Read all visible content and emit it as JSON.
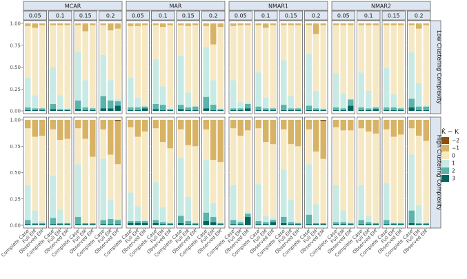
{
  "chart_data": {
    "type": "bar",
    "stacked": true,
    "y_scale": "proportion",
    "ylim": [
      0,
      1
    ],
    "yticks": [
      "0.00",
      "0.25",
      "0.50",
      "0.75",
      "1.00"
    ],
    "x_categories": [
      "Complete Case",
      "Full EM",
      "Observed EM"
    ],
    "mechanisms": [
      "MCAR",
      "MAR",
      "NMAR1",
      "NMAR2"
    ],
    "missing_rates": [
      "0.05",
      "0.1",
      "0.15",
      "0.2"
    ],
    "row_labels": [
      "Low Clustering Complexity",
      "High Clustering Complexity"
    ],
    "legend": {
      "title": "K̂ − K",
      "levels": [
        "−2",
        "−1",
        "0",
        "1",
        "2",
        "3"
      ],
      "colors": [
        "#8c510a",
        "#d8b365",
        "#f6e8c3",
        "#c7eae5",
        "#5ab4ac",
        "#01665e"
      ]
    },
    "stack_order_top_to_bottom": [
      "−2",
      "−1",
      "0",
      "1",
      "2",
      "3"
    ],
    "proportions_note": "Each bar lists proportions for levels [-2,-1,0,1,2,3]",
    "bars": {
      "Low Clustering Complexity": {
        "MCAR": {
          "0.05": [
            [
              0,
              0.03,
              0.59,
              0.34,
              0.03,
              0.01
            ],
            [
              0,
              0.05,
              0.77,
              0.15,
              0.02,
              0.01
            ],
            [
              0,
              0.02,
              0.94,
              0.01,
              0.02,
              0.01
            ]
          ],
          "0.1": [
            [
              0,
              0.02,
              0.48,
              0.42,
              0.06,
              0.02
            ],
            [
              0,
              0.02,
              0.8,
              0.16,
              0.01,
              0.01
            ],
            [
              0,
              0.02,
              0.95,
              0.01,
              0.01,
              0.01
            ]
          ],
          "0.15": [
            [
              0,
              0.02,
              0.3,
              0.56,
              0.1,
              0.02
            ],
            [
              0,
              0.09,
              0.56,
              0.31,
              0.03,
              0.01
            ],
            [
              0,
              0.02,
              0.94,
              0.01,
              0.02,
              0.01
            ]
          ],
          "0.2": [
            [
              0,
              0.02,
              0.34,
              0.47,
              0.14,
              0.03
            ],
            [
              0,
              0.08,
              0.57,
              0.23,
              0.09,
              0.03
            ],
            [
              0,
              0.06,
              0.8,
              0.03,
              0.05,
              0.06
            ]
          ]
        },
        "MAR": {
          "0.05": [
            [
              0,
              0.03,
              0.59,
              0.34,
              0.03,
              0.01
            ],
            [
              0,
              0.03,
              0.82,
              0.11,
              0.03,
              0.01
            ],
            [
              0,
              0.02,
              0.92,
              0.01,
              0.02,
              0.03
            ]
          ],
          "0.1": [
            [
              0,
              0.02,
              0.39,
              0.51,
              0.06,
              0.02
            ],
            [
              0,
              0.04,
              0.68,
              0.21,
              0.06,
              0.01
            ],
            [
              0,
              0.02,
              0.95,
              0.01,
              0.01,
              0.01
            ]
          ],
          "0.15": [
            [
              0,
              0.02,
              0.35,
              0.56,
              0.05,
              0.02
            ],
            [
              0,
              0.03,
              0.76,
              0.17,
              0.03,
              0.01
            ],
            [
              0,
              0.02,
              0.92,
              0.01,
              0.04,
              0.01
            ]
          ],
          "0.2": [
            [
              0,
              0.03,
              0.24,
              0.57,
              0.13,
              0.03
            ],
            [
              0,
              0.24,
              0.41,
              0.28,
              0.06,
              0.01
            ],
            [
              0,
              0.04,
              0.93,
              0.01,
              0.01,
              0.01
            ]
          ]
        },
        "NMAR1": {
          "0.05": [
            [
              0,
              0.03,
              0.62,
              0.32,
              0.02,
              0.01
            ],
            [
              0,
              0.02,
              0.88,
              0.07,
              0.02,
              0.01
            ],
            [
              0,
              0.02,
              0.88,
              0.02,
              0.05,
              0.03
            ]
          ],
          "0.1": [
            [
              0,
              0.02,
              0.54,
              0.39,
              0.04,
              0.01
            ],
            [
              0,
              0.05,
              0.8,
              0.12,
              0.02,
              0.01
            ],
            [
              0,
              0.02,
              0.94,
              0.01,
              0.02,
              0.01
            ]
          ],
          "0.15": [
            [
              0,
              0.02,
              0.4,
              0.51,
              0.06,
              0.01
            ],
            [
              0,
              0.02,
              0.81,
              0.14,
              0.02,
              0.01
            ],
            [
              0,
              0.02,
              0.94,
              0.01,
              0.02,
              0.01
            ]
          ],
          "0.2": [
            [
              0,
              0.02,
              0.33,
              0.59,
              0.05,
              0.01
            ],
            [
              0,
              0.12,
              0.65,
              0.2,
              0.02,
              0.01
            ],
            [
              0,
              0.02,
              0.95,
              0.01,
              0.01,
              0.01
            ]
          ]
        },
        "NMAR2": {
          "0.05": [
            [
              0,
              0.02,
              0.55,
              0.39,
              0.03,
              0.01
            ],
            [
              0,
              0.02,
              0.78,
              0.17,
              0.02,
              0.01
            ],
            [
              0,
              0.02,
              0.84,
              0.01,
              0.07,
              0.06
            ]
          ],
          "0.1": [
            [
              0,
              0.02,
              0.54,
              0.4,
              0.03,
              0.01
            ],
            [
              0,
              0.02,
              0.75,
              0.2,
              0.02,
              0.01
            ],
            [
              0,
              0.02,
              0.93,
              0.01,
              0.02,
              0.02
            ]
          ],
          "0.15": [
            [
              0,
              0.02,
              0.49,
              0.45,
              0.03,
              0.01
            ],
            [
              0,
              0.02,
              0.79,
              0.15,
              0.03,
              0.01
            ],
            [
              0,
              0.02,
              0.94,
              0.01,
              0.02,
              0.01
            ]
          ],
          "0.2": [
            [
              0,
              0.02,
              0.31,
              0.53,
              0.1,
              0.04
            ],
            [
              0,
              0.06,
              0.62,
              0.27,
              0.04,
              0.01
            ],
            [
              0,
              0.02,
              0.92,
              0.01,
              0.04,
              0.01
            ]
          ]
        }
      },
      "High Clustering Complexity": {
        "MCAR": {
          "0.05": [
            [
              0,
              0.08,
              0.54,
              0.33,
              0.04,
              0.01
            ],
            [
              0,
              0.16,
              0.7,
              0.12,
              0.01,
              0.01
            ],
            [
              0,
              0.15,
              0.81,
              0.02,
              0.01,
              0.01
            ]
          ],
          "0.1": [
            [
              0,
              0.09,
              0.44,
              0.4,
              0.06,
              0.01
            ],
            [
              0,
              0.19,
              0.66,
              0.13,
              0.01,
              0.01
            ],
            [
              0,
              0.18,
              0.79,
              0.01,
              0.01,
              0.01
            ]
          ],
          "0.15": [
            [
              0,
              0.08,
              0.34,
              0.5,
              0.07,
              0.01
            ],
            [
              0,
              0.18,
              0.8,
              0.0,
              0.01,
              0.01
            ],
            [
              0,
              0.35,
              0.63,
              0.0,
              0.01,
              0.01
            ]
          ],
          "0.2": [
            [
              0,
              0.09,
              0.28,
              0.58,
              0.04,
              0.01
            ],
            [
              0,
              0.33,
              0.43,
              0.18,
              0.05,
              0.01
            ],
            [
              0.01,
              0.41,
              0.52,
              0.01,
              0.04,
              0.01
            ]
          ]
        },
        "MAR": {
          "0.05": [
            [
              0,
              0.07,
              0.62,
              0.27,
              0.02,
              0.02
            ],
            [
              0,
              0.16,
              0.66,
              0.14,
              0.02,
              0.02
            ],
            [
              0,
              0.11,
              0.84,
              0.01,
              0.02,
              0.02
            ]
          ],
          "0.1": [
            [
              0,
              0.08,
              0.51,
              0.36,
              0.03,
              0.02
            ],
            [
              0,
              0.21,
              0.62,
              0.14,
              0.02,
              0.01
            ],
            [
              0,
              0.27,
              0.7,
              0.01,
              0.01,
              0.01
            ]
          ],
          "0.15": [
            [
              0,
              0.09,
              0.27,
              0.55,
              0.07,
              0.02
            ],
            [
              0,
              0.24,
              0.49,
              0.23,
              0.03,
              0.01
            ],
            [
              0,
              0.25,
              0.72,
              0.01,
              0.01,
              0.01
            ]
          ],
          "0.2": [
            [
              0,
              0.09,
              0.29,
              0.5,
              0.08,
              0.04
            ],
            [
              0,
              0.38,
              0.41,
              0.13,
              0.05,
              0.03
            ],
            [
              0,
              0.4,
              0.57,
              0.01,
              0.01,
              0.01
            ]
          ]
        },
        "NMAR1": {
          "0.05": [
            [
              0,
              0.08,
              0.54,
              0.33,
              0.04,
              0.01
            ],
            [
              0,
              0.15,
              0.8,
              0.02,
              0.02,
              0.01
            ],
            [
              0,
              0.1,
              0.77,
              0.02,
              0.03,
              0.08
            ]
          ],
          "0.1": [
            [
              0,
              0.08,
              0.53,
              0.35,
              0.03,
              0.01
            ],
            [
              0,
              0.21,
              0.7,
              0.06,
              0.02,
              0.01
            ],
            [
              0,
              0.23,
              0.7,
              0.02,
              0.02,
              0.03
            ]
          ],
          "0.15": [
            [
              0,
              0.09,
              0.38,
              0.45,
              0.06,
              0.02
            ],
            [
              0,
              0.23,
              0.53,
              0.21,
              0.02,
              0.01
            ],
            [
              0,
              0.25,
              0.72,
              0.01,
              0.01,
              0.01
            ]
          ],
          "0.2": [
            [
              0,
              0.09,
              0.33,
              0.48,
              0.09,
              0.01
            ],
            [
              0,
              0.3,
              0.5,
              0.18,
              0.01,
              0.01
            ],
            [
              0.01,
              0.36,
              0.61,
              0.0,
              0.01,
              0.01
            ]
          ]
        },
        "NMAR2": {
          "0.05": [
            [
              0,
              0.07,
              0.55,
              0.35,
              0.02,
              0.01
            ],
            [
              0,
              0.1,
              0.76,
              0.11,
              0.02,
              0.01
            ],
            [
              0,
              0.1,
              0.87,
              0.01,
              0.01,
              0.01
            ]
          ],
          "0.1": [
            [
              0,
              0.08,
              0.54,
              0.33,
              0.04,
              0.01
            ],
            [
              0,
              0.11,
              0.8,
              0.06,
              0.02,
              0.01
            ],
            [
              0,
              0.13,
              0.84,
              0.01,
              0.01,
              0.01
            ]
          ],
          "0.15": [
            [
              0,
              0.09,
              0.51,
              0.35,
              0.04,
              0.01
            ],
            [
              0,
              0.16,
              0.81,
              0.01,
              0.01,
              0.01
            ],
            [
              0,
              0.14,
              0.83,
              0.01,
              0.01,
              0.01
            ]
          ],
          "0.2": [
            [
              0,
              0.08,
              0.25,
              0.53,
              0.12,
              0.02
            ],
            [
              0,
              0.15,
              0.66,
              0.17,
              0.01,
              0.01
            ],
            [
              0,
              0.2,
              0.77,
              0.01,
              0.01,
              0.01
            ]
          ]
        }
      }
    }
  }
}
